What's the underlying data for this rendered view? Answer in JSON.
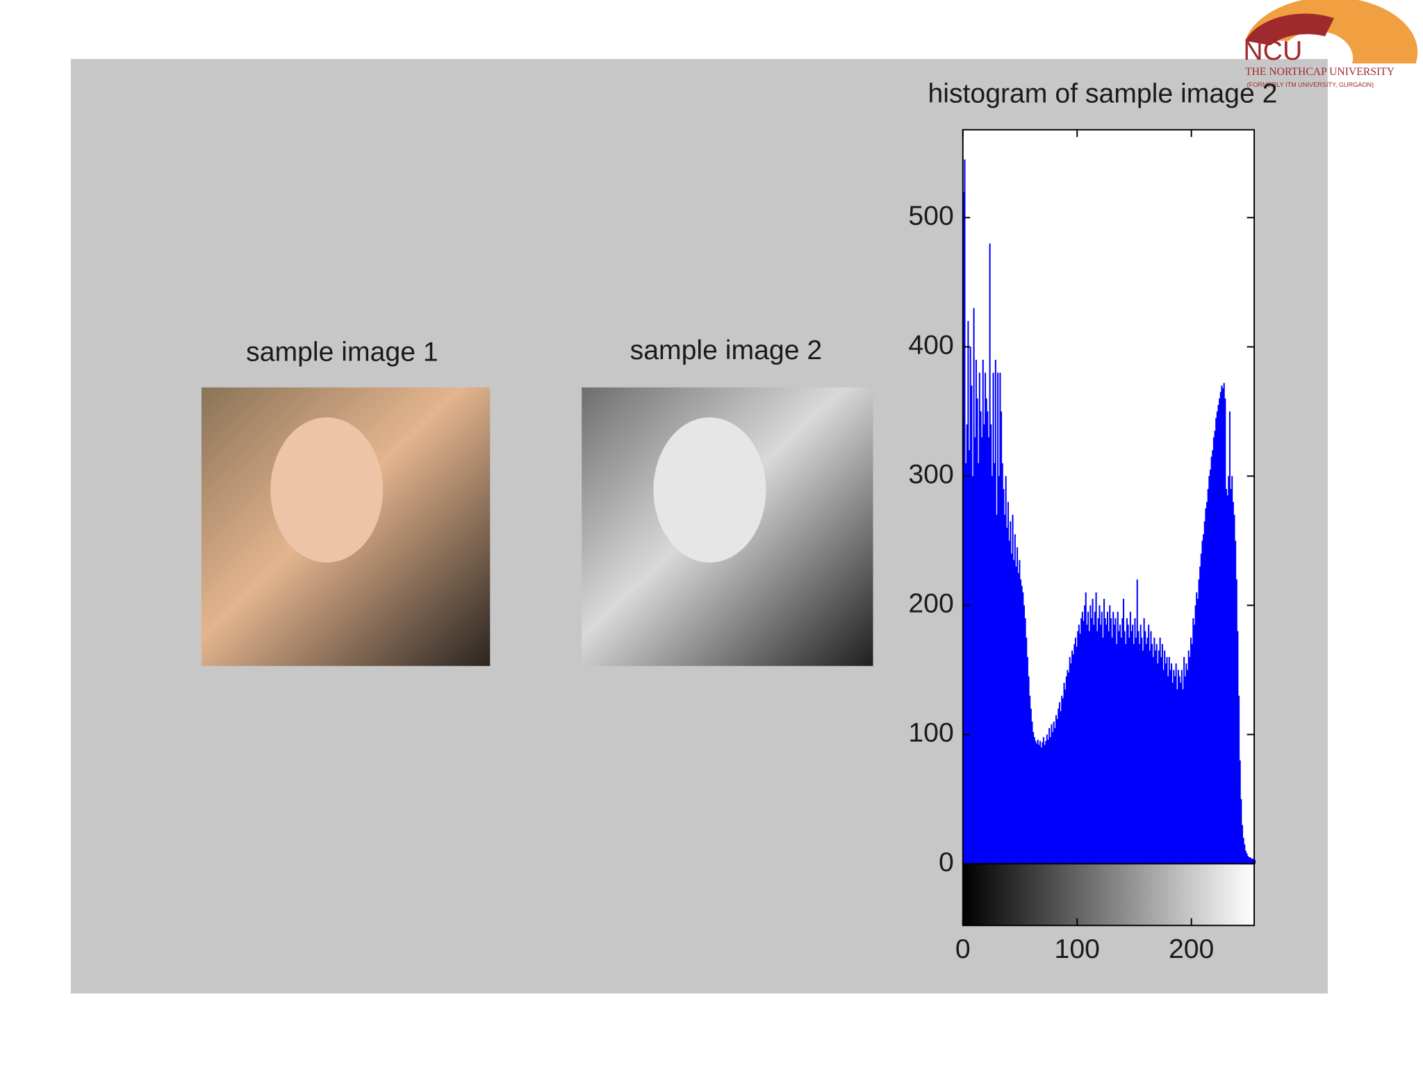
{
  "logo": {
    "mark": "NCU",
    "name": "THE NORTHCAP UNIVERSITY",
    "note": "(FORMERLY ITM UNIVERSITY, GURGAON)"
  },
  "images": [
    {
      "title": "sample image 1"
    },
    {
      "title": "sample image 2"
    }
  ],
  "chart_data": {
    "type": "bar",
    "title": "histogram of sample image 2",
    "color": "#0000ff",
    "xlim": [
      0,
      255
    ],
    "xticks": [
      0,
      100,
      200
    ],
    "ylim": [
      0,
      568
    ],
    "yticks": [
      0,
      100,
      200,
      300,
      400,
      500
    ],
    "grid": false,
    "x": [
      0,
      1,
      2,
      3,
      4,
      5,
      6,
      7,
      8,
      9,
      10,
      11,
      12,
      13,
      14,
      15,
      16,
      17,
      18,
      19,
      20,
      21,
      22,
      23,
      24,
      25,
      26,
      27,
      28,
      29,
      30,
      31,
      32,
      33,
      34,
      35,
      36,
      37,
      38,
      39,
      40,
      41,
      42,
      43,
      44,
      45,
      46,
      47,
      48,
      49,
      50,
      51,
      52,
      53,
      54,
      55,
      56,
      57,
      58,
      59,
      60,
      61,
      62,
      63,
      64,
      65,
      66,
      67,
      68,
      69,
      70,
      71,
      72,
      73,
      74,
      75,
      76,
      77,
      78,
      79,
      80,
      81,
      82,
      83,
      84,
      85,
      86,
      87,
      88,
      89,
      90,
      91,
      92,
      93,
      94,
      95,
      96,
      97,
      98,
      99,
      100,
      101,
      102,
      103,
      104,
      105,
      106,
      107,
      108,
      109,
      110,
      111,
      112,
      113,
      114,
      115,
      116,
      117,
      118,
      119,
      120,
      121,
      122,
      123,
      124,
      125,
      126,
      127,
      128,
      129,
      130,
      131,
      132,
      133,
      134,
      135,
      136,
      137,
      138,
      139,
      140,
      141,
      142,
      143,
      144,
      145,
      146,
      147,
      148,
      149,
      150,
      151,
      152,
      153,
      154,
      155,
      156,
      157,
      158,
      159,
      160,
      161,
      162,
      163,
      164,
      165,
      166,
      167,
      168,
      169,
      170,
      171,
      172,
      173,
      174,
      175,
      176,
      177,
      178,
      179,
      180,
      181,
      182,
      183,
      184,
      185,
      186,
      187,
      188,
      189,
      190,
      191,
      192,
      193,
      194,
      195,
      196,
      197,
      198,
      199,
      200,
      201,
      202,
      203,
      204,
      205,
      206,
      207,
      208,
      209,
      210,
      211,
      212,
      213,
      214,
      215,
      216,
      217,
      218,
      219,
      220,
      221,
      222,
      223,
      224,
      225,
      226,
      227,
      228,
      229,
      230,
      231,
      232,
      233,
      234,
      235,
      236,
      237,
      238,
      239,
      240,
      241,
      242,
      243,
      244,
      245,
      246,
      247,
      248,
      249,
      250,
      251,
      252,
      253,
      254,
      255
    ],
    "values": [
      520,
      545,
      310,
      340,
      420,
      320,
      400,
      370,
      300,
      430,
      330,
      390,
      360,
      310,
      380,
      350,
      330,
      390,
      340,
      380,
      360,
      350,
      330,
      480,
      340,
      300,
      380,
      310,
      390,
      270,
      380,
      300,
      380,
      350,
      310,
      290,
      270,
      300,
      260,
      280,
      250,
      265,
      240,
      270,
      235,
      255,
      230,
      245,
      225,
      235,
      220,
      215,
      210,
      200,
      190,
      175,
      160,
      145,
      130,
      120,
      110,
      102,
      98,
      95,
      93,
      96,
      92,
      95,
      90,
      94,
      98,
      92,
      95,
      100,
      96,
      105,
      98,
      108,
      102,
      110,
      105,
      115,
      112,
      120,
      125,
      118,
      130,
      128,
      140,
      135,
      145,
      150,
      148,
      160,
      155,
      165,
      162,
      170,
      175,
      168,
      180,
      185,
      178,
      190,
      195,
      188,
      200,
      210,
      185,
      195,
      180,
      200,
      190,
      205,
      185,
      195,
      210,
      180,
      190,
      200,
      185,
      195,
      175,
      205,
      190,
      185,
      195,
      180,
      200,
      190,
      175,
      195,
      185,
      190,
      170,
      195,
      180,
      185,
      175,
      190,
      205,
      180,
      170,
      190,
      185,
      175,
      195,
      180,
      185,
      170,
      190,
      175,
      220,
      180,
      170,
      185,
      175,
      165,
      190,
      180,
      170,
      175,
      185,
      165,
      180,
      170,
      160,
      175,
      165,
      170,
      155,
      165,
      175,
      160,
      170,
      150,
      165,
      155,
      160,
      145,
      160,
      150,
      155,
      140,
      150,
      145,
      155,
      135,
      150,
      145,
      140,
      150,
      135,
      160,
      145,
      155,
      150,
      165,
      160,
      175,
      170,
      190,
      185,
      200,
      210,
      205,
      220,
      230,
      240,
      250,
      255,
      265,
      275,
      280,
      290,
      300,
      305,
      315,
      320,
      330,
      335,
      345,
      350,
      355,
      360,
      365,
      370,
      368,
      372,
      360,
      290,
      285,
      300,
      350,
      290,
      300,
      280,
      270,
      250,
      220,
      180,
      130,
      80,
      50,
      30,
      20,
      15,
      10,
      8,
      6,
      5,
      5,
      4,
      4,
      3,
      3
    ]
  }
}
